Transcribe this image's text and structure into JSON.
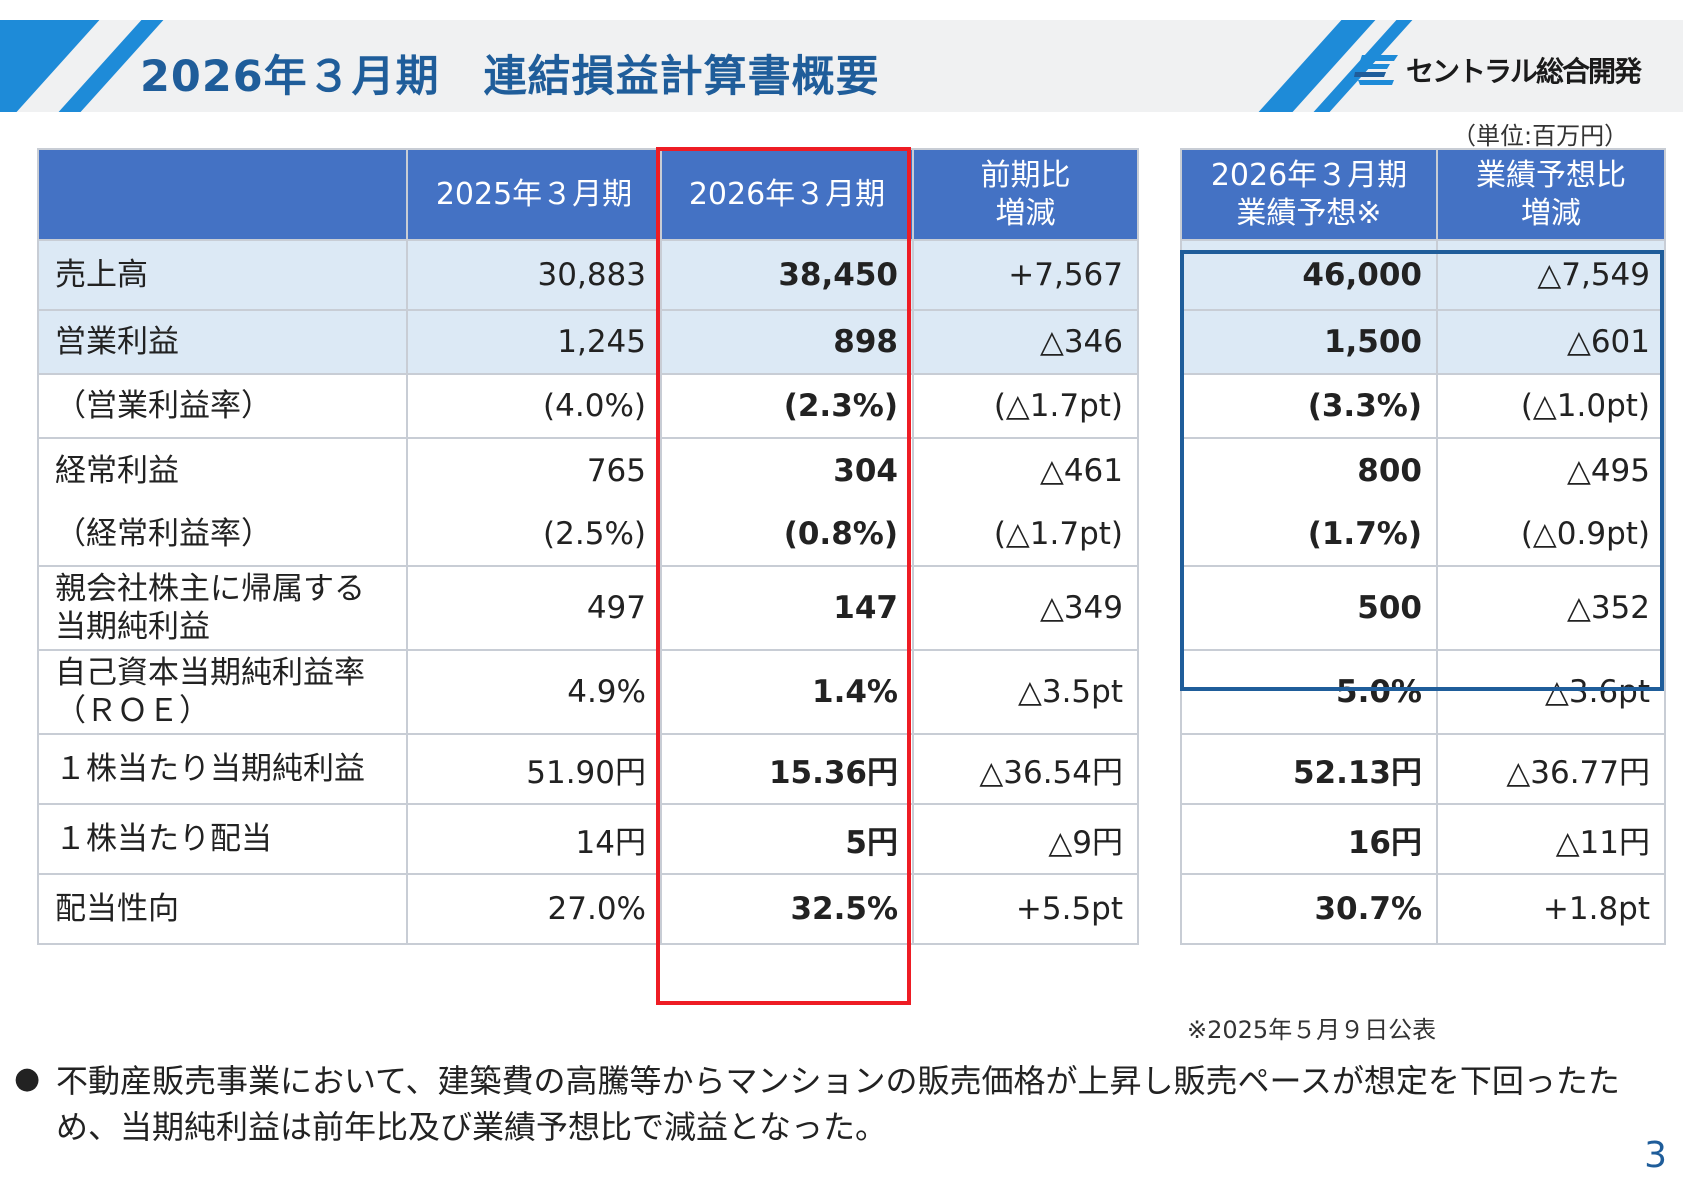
{
  "header": {
    "title": "2026年３月期　連結損益計算書概要",
    "company_logo_text": "セントラル総合開発"
  },
  "unit_label": "（単位:百万円）",
  "table": {
    "columns": [
      "2025年３月期",
      "2026年３月期",
      "前期比\n増減",
      "2026年３月期\n業績予想※",
      "業績予想比\n増減"
    ],
    "rows": [
      {
        "label": "売上高",
        "fy2025": "30,883",
        "fy2026": "38,450",
        "yoy": "+7,567",
        "forecast": "46,000",
        "vs_forecast": "△7,549"
      },
      {
        "label": "営業利益",
        "fy2025": "1,245",
        "fy2026": "898",
        "yoy": "△346",
        "forecast": "1,500",
        "vs_forecast": "△601"
      },
      {
        "label": "（営業利益率）",
        "fy2025": "(4.0%)",
        "fy2026": "(2.3%)",
        "yoy": "(△1.7pt)",
        "forecast": "(3.3%)",
        "vs_forecast": "(△1.0pt)"
      },
      {
        "label": "経常利益",
        "fy2025": "765",
        "fy2026": "304",
        "yoy": "△461",
        "forecast": "800",
        "vs_forecast": "△495"
      },
      {
        "label": "（経常利益率）",
        "fy2025": "(2.5%)",
        "fy2026": "(0.8%)",
        "yoy": "(△1.7pt)",
        "forecast": "(1.7%)",
        "vs_forecast": "(△0.9pt)"
      },
      {
        "label": "親会社株主に帰属する\n当期純利益",
        "fy2025": "497",
        "fy2026": "147",
        "yoy": "△349",
        "forecast": "500",
        "vs_forecast": "△352"
      },
      {
        "label": "自己資本当期純利益率\n（ＲＯＥ）",
        "fy2025": "4.9%",
        "fy2026": "1.4%",
        "yoy": "△3.5pt",
        "forecast": "5.0%",
        "vs_forecast": "△3.6pt"
      },
      {
        "label": "１株当たり当期純利益",
        "fy2025": "51.90円",
        "fy2026": "15.36円",
        "yoy": "△36.54円",
        "forecast": "52.13円",
        "vs_forecast": "△36.77円"
      },
      {
        "label": "１株当たり配当",
        "fy2025": "14円",
        "fy2026": "5円",
        "yoy": "△9円",
        "forecast": "16円",
        "vs_forecast": "△11円"
      },
      {
        "label": "配当性向",
        "fy2025": "27.0%",
        "fy2026": "32.5%",
        "yoy": "+5.5pt",
        "forecast": "30.7%",
        "vs_forecast": "+1.8pt"
      }
    ]
  },
  "forecast_note": "※2025年５月９日公表",
  "bullet": "不動産販売事業において、建築費の高騰等からマンションの販売価格が上昇し販売ペースが想定を下回ったため、当期純利益は前年比及び業績予想比で減益となった。",
  "page_number": "3",
  "colors": {
    "header_fill": "#4472c4",
    "highlight_row": "#dce9f5",
    "current_year_box": "#ee1c24",
    "forecast_box": "#1f5d9a",
    "title_text": "#1f5d9a",
    "accent_stripe": "#1e8bd8"
  }
}
